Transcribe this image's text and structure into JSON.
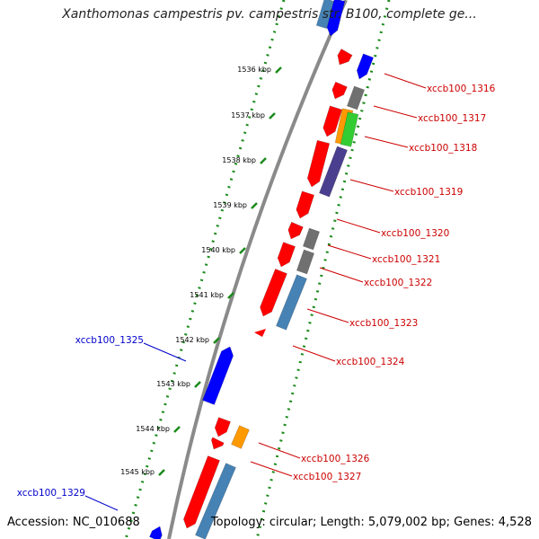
{
  "title": "Xanthomonas campestris pv. campestris str. B100, complete ge...",
  "footer": {
    "accession": "Accession: NC_010688",
    "summary": "Topology: circular; Length: 5,079,002 bp; Genes: 4,528"
  },
  "colors": {
    "gene_red": "#ff0000",
    "gene_blue": "#0000ff",
    "gene_gray": "#707070",
    "gene_orange": "#ff9900",
    "gene_green": "#33cc33",
    "gene_purple": "#4a3f8f",
    "gene_steelblue": "#4682b4",
    "label_red": "#cc0000",
    "label_blue": "#0000cc",
    "backbone": "#888888",
    "tick_green": "#1a8a1a"
  },
  "ticks": [
    "1536 kbp",
    "1537 kbp",
    "1538 kbp",
    "1539 kbp",
    "1540 kbp",
    "1541 kbp",
    "1542 kbp",
    "1543 kbp",
    "1544 kbp",
    "1545 kbp"
  ],
  "gene_labels": [
    {
      "text": "xccb100_1316",
      "strand": "forward"
    },
    {
      "text": "xccb100_1317",
      "strand": "forward"
    },
    {
      "text": "xccb100_1318",
      "strand": "forward"
    },
    {
      "text": "xccb100_1319",
      "strand": "forward"
    },
    {
      "text": "xccb100_1320",
      "strand": "forward"
    },
    {
      "text": "xccb100_1321",
      "strand": "forward"
    },
    {
      "text": "xccb100_1322",
      "strand": "forward"
    },
    {
      "text": "xccb100_1323",
      "strand": "forward"
    },
    {
      "text": "xccb100_1324",
      "strand": "forward"
    },
    {
      "text": "xccb100_1326",
      "strand": "forward"
    },
    {
      "text": "xccb100_1327",
      "strand": "forward"
    },
    {
      "text": "xccb100_1325",
      "strand": "reverse"
    },
    {
      "text": "xccb100_1329",
      "strand": "reverse"
    }
  ]
}
